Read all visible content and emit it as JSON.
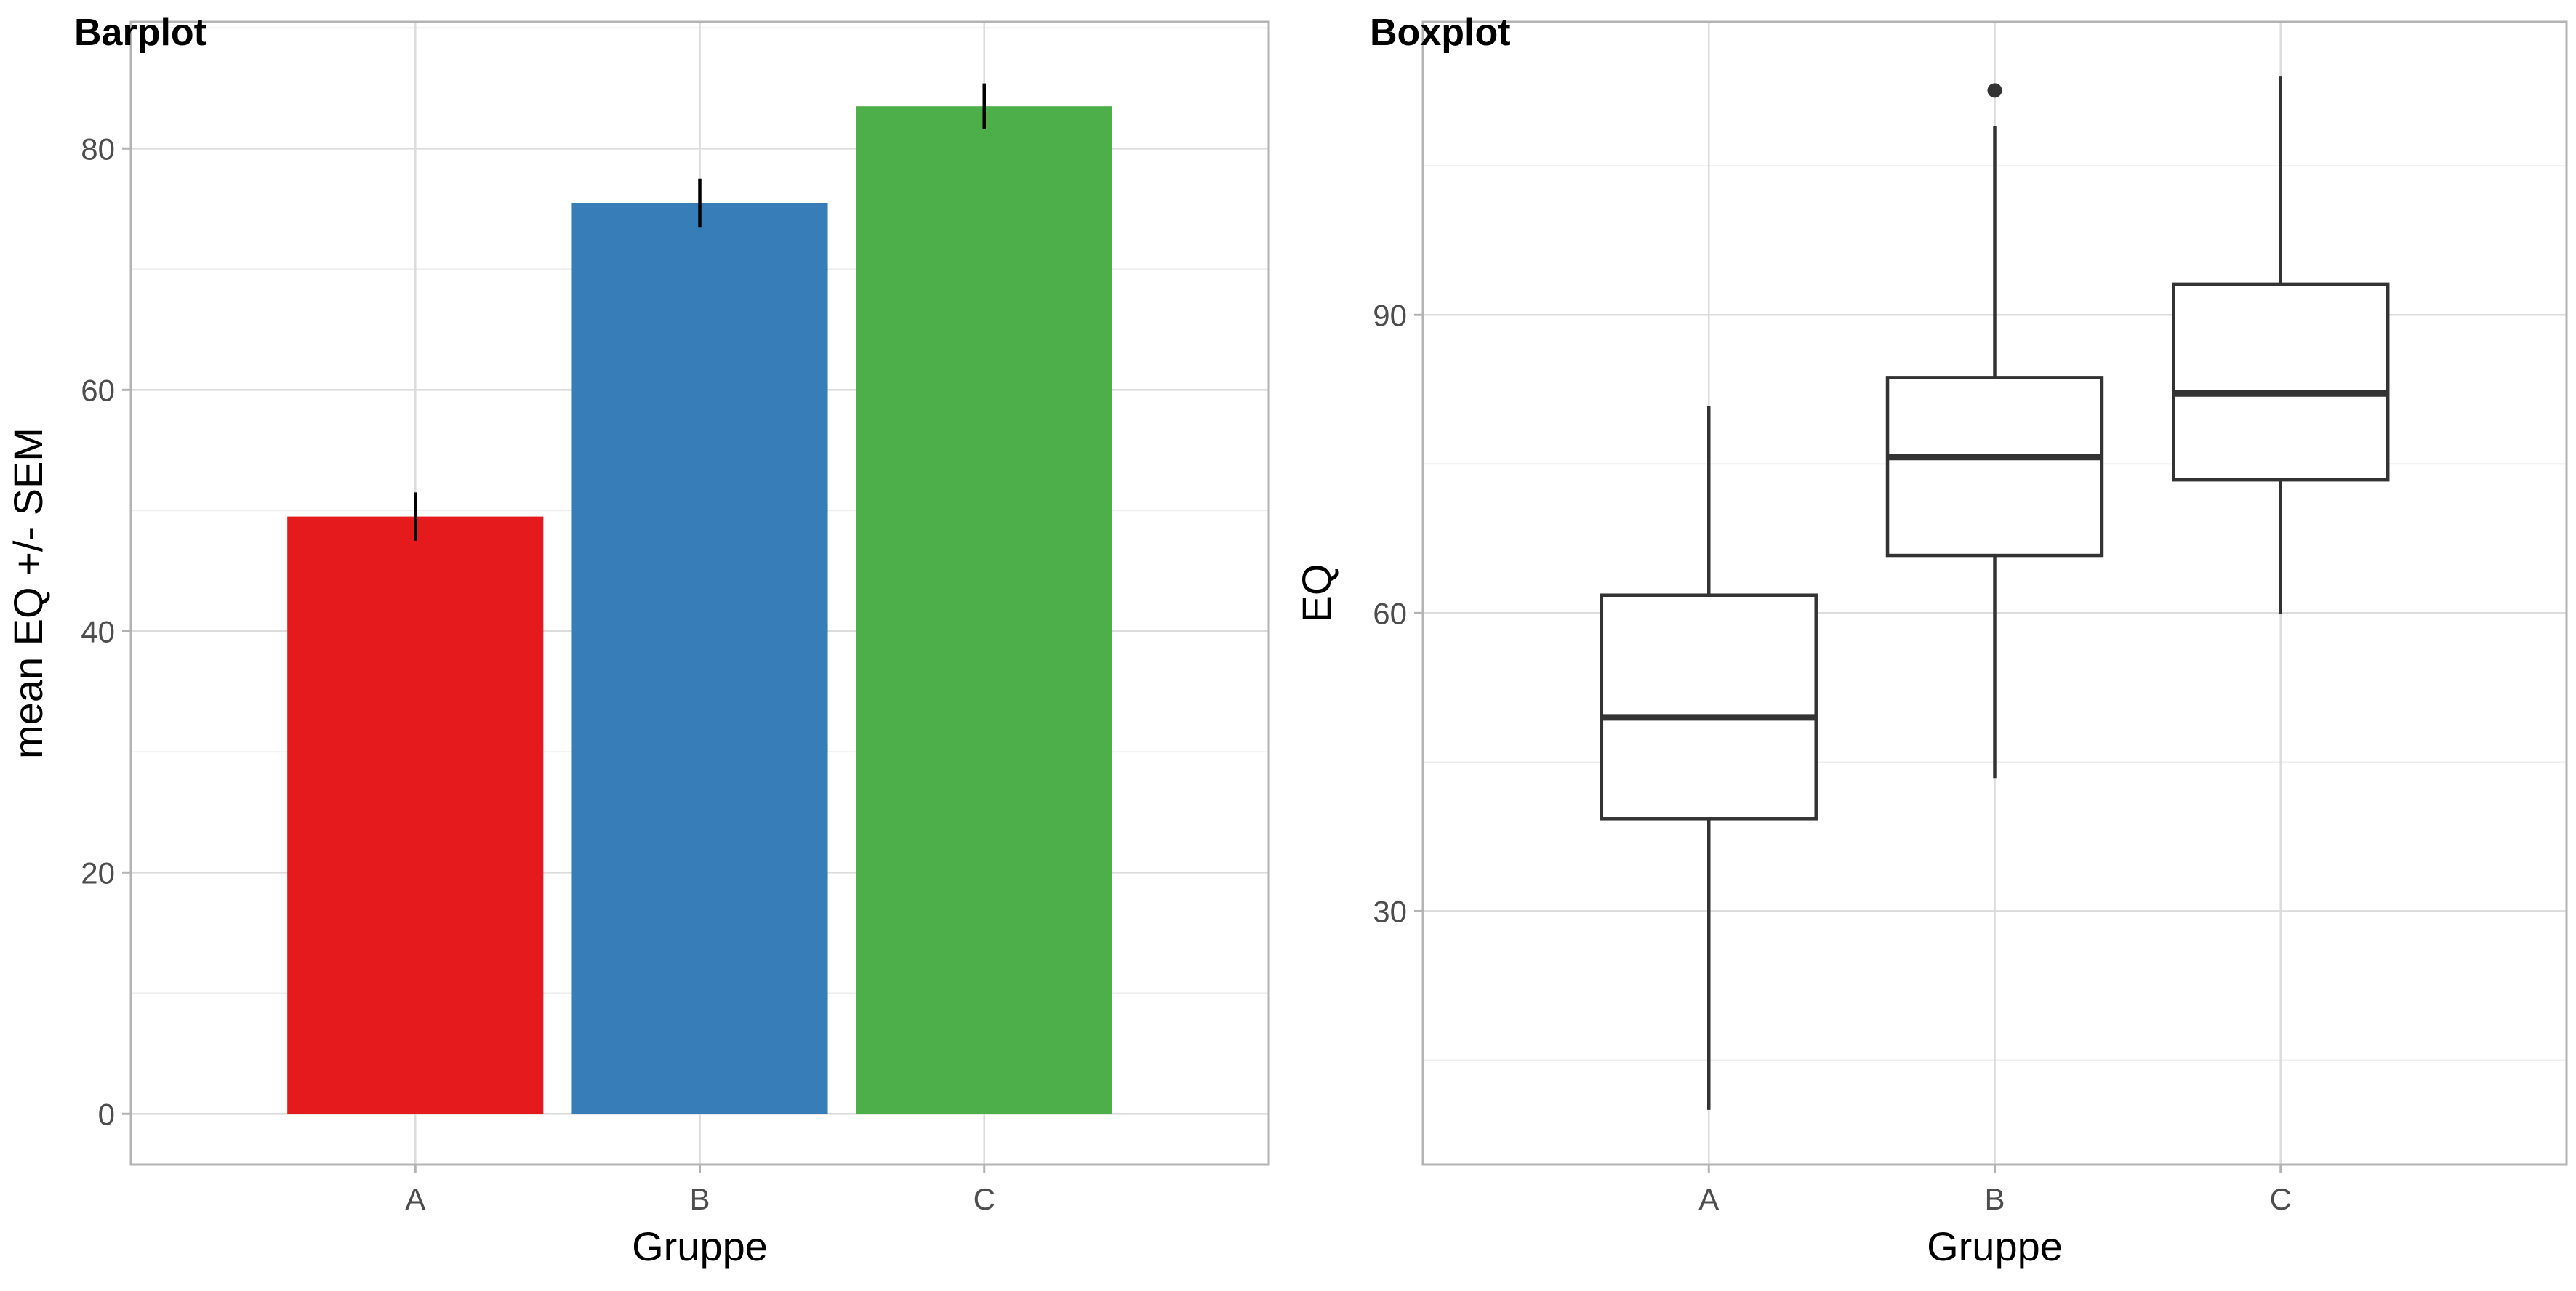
{
  "chart_data": [
    {
      "type": "bar",
      "title": "Barplot",
      "xlabel": "Gruppe",
      "ylabel": "mean EQ +/- SEM",
      "categories": [
        "A",
        "B",
        "C"
      ],
      "values": [
        49.5,
        75.5,
        83.5
      ],
      "error": [
        2.0,
        2.0,
        1.9
      ],
      "colors": [
        "#E41A1C",
        "#377EB8",
        "#4DAF4A"
      ],
      "ylim": [
        -4.2,
        90.5
      ],
      "yticks": [
        0,
        20,
        40,
        60,
        80
      ],
      "ytick_labels": [
        "0",
        "20",
        "40",
        "60",
        "80"
      ],
      "grid": true
    },
    {
      "type": "box",
      "title": "Boxplot",
      "xlabel": "Gruppe",
      "ylabel": "EQ",
      "categories": [
        "A",
        "B",
        "C"
      ],
      "boxes": [
        {
          "whisker_low": 10,
          "q1": 39.3,
          "median": 49.5,
          "q3": 61.8,
          "whisker_high": 80.8,
          "outliers": []
        },
        {
          "whisker_low": 43.4,
          "q1": 65.8,
          "median": 75.7,
          "q3": 83.7,
          "whisker_high": 109,
          "outliers": [
            112.6
          ]
        },
        {
          "whisker_low": 59.9,
          "q1": 73.4,
          "median": 82.1,
          "q3": 93.1,
          "whisker_high": 114,
          "outliers": []
        }
      ],
      "ylim": [
        4.5,
        119.5
      ],
      "yticks": [
        30,
        60,
        90
      ],
      "ytick_labels": [
        "30",
        "60",
        "90"
      ],
      "grid": true
    }
  ]
}
